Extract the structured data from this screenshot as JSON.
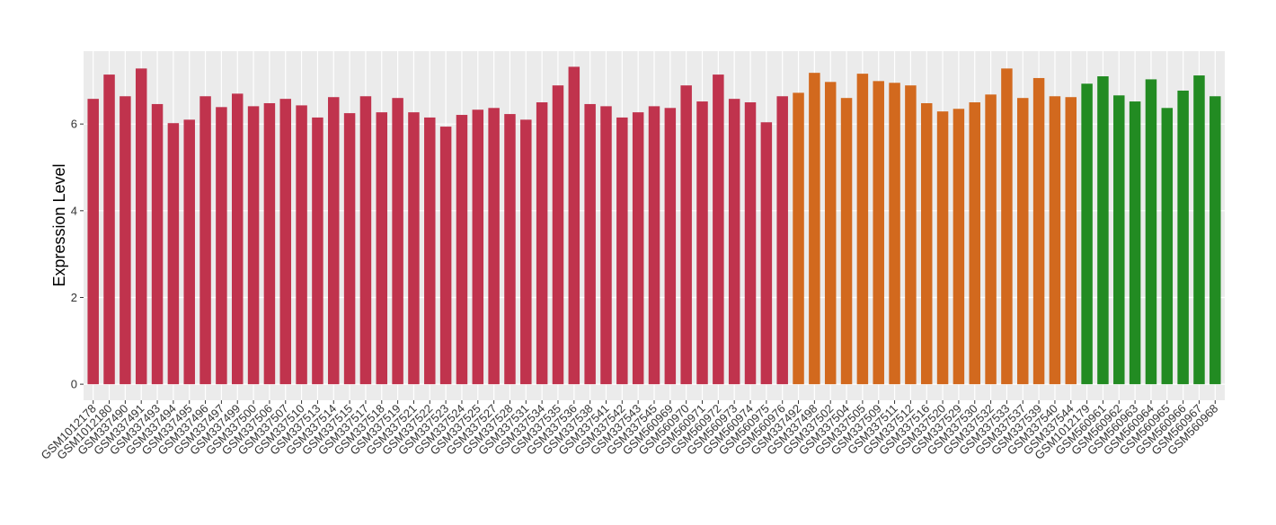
{
  "chart_data": {
    "type": "bar",
    "y_label": "Expression Level",
    "categories": [
      "GSM1012178",
      "GSM1012180",
      "GSM337490",
      "GSM337491",
      "GSM337493",
      "GSM337494",
      "GSM337495",
      "GSM337496",
      "GSM337497",
      "GSM337499",
      "GSM337500",
      "GSM337506",
      "GSM337507",
      "GSM337510",
      "GSM337513",
      "GSM337514",
      "GSM337515",
      "GSM337517",
      "GSM337518",
      "GSM337519",
      "GSM337521",
      "GSM337522",
      "GSM337523",
      "GSM337524",
      "GSM337525",
      "GSM337527",
      "GSM337528",
      "GSM337531",
      "GSM337534",
      "GSM337535",
      "GSM337536",
      "GSM337538",
      "GSM337541",
      "GSM337542",
      "GSM337543",
      "GSM337545",
      "GSM560969",
      "GSM560970",
      "GSM560971",
      "GSM560972",
      "GSM560973",
      "GSM560974",
      "GSM560975",
      "GSM560976",
      "GSM337492",
      "GSM337498",
      "GSM337502",
      "GSM337504",
      "GSM337505",
      "GSM337509",
      "GSM337511",
      "GSM337512",
      "GSM337516",
      "GSM337520",
      "GSM337529",
      "GSM337530",
      "GSM337532",
      "GSM337533",
      "GSM337537",
      "GSM337539",
      "GSM337540",
      "GSM337544",
      "GSM1012179",
      "GSM560961",
      "GSM560962",
      "GSM560963",
      "GSM560964",
      "GSM560965",
      "GSM560966",
      "GSM560967",
      "GSM560968"
    ],
    "values": [
      6.58,
      7.14,
      6.64,
      7.28,
      6.46,
      6.02,
      6.1,
      6.64,
      6.39,
      6.7,
      6.41,
      6.48,
      6.58,
      6.43,
      6.15,
      6.62,
      6.25,
      6.64,
      6.27,
      6.6,
      6.27,
      6.15,
      5.94,
      6.21,
      6.33,
      6.37,
      6.23,
      6.1,
      6.5,
      6.89,
      7.32,
      6.46,
      6.41,
      6.15,
      6.27,
      6.41,
      6.37,
      6.89,
      6.52,
      7.14,
      6.58,
      6.5,
      6.04,
      6.64,
      6.72,
      7.18,
      6.97,
      6.6,
      7.16,
      6.99,
      6.95,
      6.89,
      6.48,
      6.29,
      6.35,
      6.5,
      6.68,
      7.28,
      6.6,
      7.06,
      6.64,
      6.62,
      6.93,
      7.1,
      6.66,
      6.52,
      7.03,
      6.37,
      6.77,
      7.12,
      6.64
    ],
    "colors": [
      "#c0334d",
      "#c0334d",
      "#c0334d",
      "#c0334d",
      "#c0334d",
      "#c0334d",
      "#c0334d",
      "#c0334d",
      "#c0334d",
      "#c0334d",
      "#c0334d",
      "#c0334d",
      "#c0334d",
      "#c0334d",
      "#c0334d",
      "#c0334d",
      "#c0334d",
      "#c0334d",
      "#c0334d",
      "#c0334d",
      "#c0334d",
      "#c0334d",
      "#c0334d",
      "#c0334d",
      "#c0334d",
      "#c0334d",
      "#c0334d",
      "#c0334d",
      "#c0334d",
      "#c0334d",
      "#c0334d",
      "#c0334d",
      "#c0334d",
      "#c0334d",
      "#c0334d",
      "#c0334d",
      "#c0334d",
      "#c0334d",
      "#c0334d",
      "#c0334d",
      "#c0334d",
      "#c0334d",
      "#c0334d",
      "#c0334d",
      "#d2691e",
      "#d2691e",
      "#d2691e",
      "#d2691e",
      "#d2691e",
      "#d2691e",
      "#d2691e",
      "#d2691e",
      "#d2691e",
      "#d2691e",
      "#d2691e",
      "#d2691e",
      "#d2691e",
      "#d2691e",
      "#d2691e",
      "#d2691e",
      "#d2691e",
      "#d2691e",
      "#228b22",
      "#228b22",
      "#228b22",
      "#228b22",
      "#228b22",
      "#228b22",
      "#228b22",
      "#228b22",
      "#228b22"
    ],
    "ylim": [
      -0.37,
      7.68
    ],
    "yticks": [
      0,
      2,
      4,
      6
    ],
    "grid": true
  }
}
